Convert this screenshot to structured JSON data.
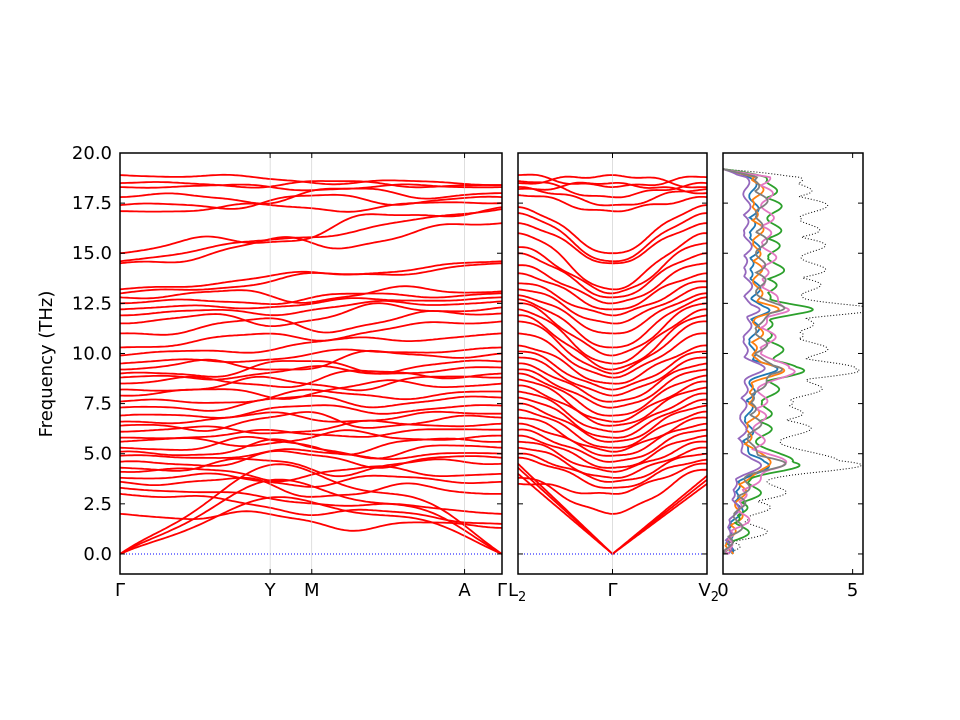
{
  "chart_data": [
    {
      "type": "line",
      "panel": "band-structure-1",
      "ylabel": "Frequency (THz)",
      "ylim": [
        -1,
        20
      ],
      "yticks": [
        0.0,
        2.5,
        5.0,
        7.5,
        10.0,
        12.5,
        15.0,
        17.5,
        20.0
      ],
      "ytick_labels": [
        "0.0",
        "2.5",
        "5.0",
        "7.5",
        "10.0",
        "12.5",
        "15.0",
        "17.5",
        "20.0"
      ],
      "xticks": [
        0,
        0.393,
        0.502,
        0.902,
        1.0
      ],
      "xtick_labels": [
        "Γ",
        "Y",
        "M",
        "A",
        "Γ"
      ],
      "xlim": [
        0,
        1
      ],
      "zero_line": 0.0,
      "band_count": 48,
      "series_color": "#ff0000",
      "zero_line_color": "#0000ff",
      "start_frequencies_at_left": [
        0,
        0,
        0,
        2.0,
        3.0,
        3.3,
        3.6,
        3.8,
        4.1,
        4.3,
        4.6,
        4.9,
        5.1,
        5.3,
        5.6,
        5.8,
        6.1,
        6.4,
        6.6,
        6.9,
        7.3,
        7.6,
        7.9,
        8.2,
        8.5,
        8.8,
        9.0,
        9.2,
        9.5,
        9.9,
        10.3,
        11.0,
        11.5,
        11.9,
        12.2,
        12.5,
        12.8,
        13.0,
        13.2,
        14.5,
        14.6,
        15.0,
        17.1,
        17.4,
        17.8,
        18.3,
        18.5,
        18.9
      ],
      "end_frequencies_at_right": [
        0,
        0,
        0,
        1.3,
        1.5,
        2.0,
        3.0,
        3.6,
        4.0,
        4.5,
        4.8,
        5.0,
        5.3,
        5.6,
        5.9,
        6.2,
        6.5,
        6.8,
        7.0,
        7.4,
        7.8,
        8.1,
        8.5,
        8.8,
        9.0,
        9.3,
        9.6,
        10.0,
        10.3,
        11.0,
        11.6,
        12.0,
        12.3,
        12.6,
        12.8,
        13.0,
        13.1,
        14.5,
        14.6,
        16.5,
        17.2,
        17.3,
        17.5,
        17.8,
        18.0,
        18.3,
        18.4,
        18.4
      ]
    },
    {
      "type": "line",
      "panel": "band-structure-2",
      "ylim": [
        -1,
        20
      ],
      "xticks": [
        0,
        0.5,
        1.0
      ],
      "xtick_labels": [
        "L2",
        "Γ",
        "V2"
      ],
      "xlim": [
        0,
        1
      ],
      "zero_line": 0.0,
      "series_color": "#ff0000",
      "zero_line_color": "#0000ff",
      "gamma_frequencies": [
        0,
        0,
        0,
        2.0,
        3.0,
        3.3,
        3.6,
        3.8,
        4.1,
        4.3,
        4.6,
        4.9,
        5.1,
        5.3,
        5.6,
        5.8,
        6.1,
        6.4,
        6.6,
        6.9,
        7.3,
        7.6,
        7.9,
        8.2,
        8.5,
        8.8,
        9.0,
        9.2,
        9.5,
        9.9,
        10.3,
        11.0,
        11.5,
        11.9,
        12.2,
        12.5,
        12.8,
        13.0,
        13.2,
        14.5,
        14.6,
        15.0,
        17.1,
        17.4,
        17.8,
        18.3,
        18.5,
        18.9
      ],
      "end_frequencies_at_left": [
        4.5,
        4.3,
        4.0,
        3.8,
        3.5,
        4.8,
        5.0,
        5.3,
        5.6,
        5.9,
        6.2,
        6.5,
        6.8,
        7.2,
        7.5,
        7.8,
        8.1,
        8.4,
        8.7,
        9.0,
        9.2,
        9.5,
        9.8,
        10.1,
        10.4,
        11.0,
        11.6,
        11.9,
        12.2,
        12.5,
        12.7,
        12.9,
        13.2,
        13.5,
        14.0,
        14.4,
        15.0,
        15.3,
        16.0,
        16.5,
        17.0,
        17.3,
        17.9,
        18.3,
        18.6,
        18.9,
        18.2,
        18.5
      ],
      "end_frequencies_at_right": [
        3.5,
        3.7,
        3.9,
        4.2,
        4.5,
        4.7,
        5.0,
        5.3,
        5.6,
        5.9,
        6.2,
        6.5,
        6.8,
        7.1,
        7.4,
        7.7,
        8.0,
        8.3,
        8.6,
        8.9,
        9.2,
        9.5,
        9.8,
        10.1,
        10.4,
        11.0,
        11.6,
        11.9,
        12.2,
        12.5,
        12.8,
        13.0,
        13.3,
        13.6,
        14.0,
        14.5,
        15.0,
        15.5,
        16.0,
        16.5,
        17.0,
        17.4,
        17.8,
        18.2,
        18.5,
        18.8,
        18.0,
        18.3
      ]
    },
    {
      "type": "line",
      "panel": "density-of-states",
      "ylim": [
        -1,
        20
      ],
      "xlim": [
        0,
        5.4
      ],
      "xticks": [
        0,
        5
      ],
      "xtick_labels": [
        "0",
        "5"
      ],
      "series": [
        {
          "name": "",
          "color": "#000000",
          "style": "dotted",
          "scale": 2.6
        },
        {
          "name": "",
          "color": "#1f77b4",
          "style": "solid",
          "scale": 0.9
        },
        {
          "name": "",
          "color": "#ff7f0e",
          "style": "solid",
          "scale": 1.0
        },
        {
          "name": "",
          "color": "#2ca02c",
          "style": "solid",
          "scale": 1.5
        },
        {
          "name": "",
          "color": "#9467bd",
          "style": "solid",
          "scale": 0.7
        },
        {
          "name": "",
          "color": "#e377c2",
          "style": "solid",
          "scale": 1.3
        },
        {
          "name": "",
          "color": "#7f7f7f",
          "style": "solid",
          "scale": 1.1
        }
      ]
    }
  ]
}
